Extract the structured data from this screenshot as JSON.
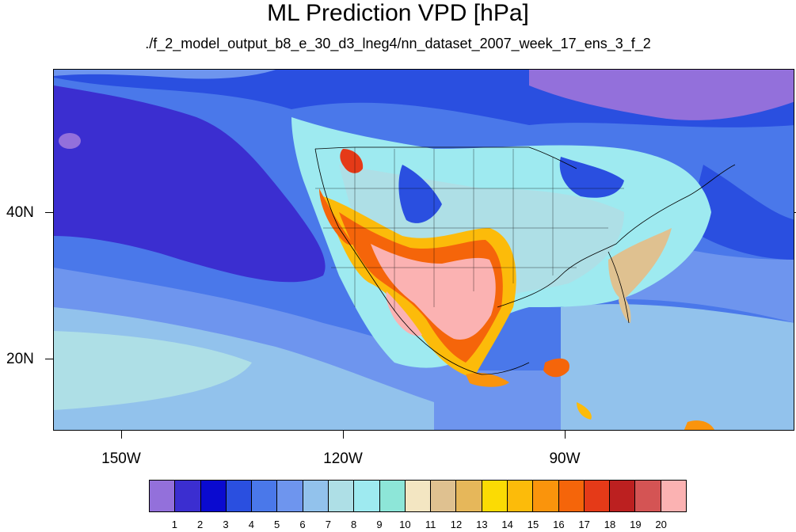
{
  "title": "ML Prediction VPD [hPa]",
  "subtitle": "./f_2_model_output_b8_e_30_d3_lneg4/nn_dataset_2007_week_17_ens_3_f_2",
  "lat_labels": [
    "40N",
    "20N"
  ],
  "lon_labels": [
    "150W",
    "120W",
    "90W"
  ],
  "colorbar": {
    "labels": [
      "1",
      "2",
      "3",
      "4",
      "5",
      "6",
      "7",
      "8",
      "9",
      "10",
      "11",
      "12",
      "13",
      "14",
      "15",
      "16",
      "17",
      "18",
      "19",
      "20"
    ],
    "colors": [
      "#9370db",
      "#3b2ed0",
      "#0a0ad0",
      "#2a4fe0",
      "#4a78ea",
      "#6e95ee",
      "#92c2ec",
      "#aedfe6",
      "#9eeaf0",
      "#8de6d8",
      "#f3e6c2",
      "#dfc190",
      "#e6b75a",
      "#fbdb04",
      "#fcbb0a",
      "#fa940c",
      "#f5650a",
      "#e53a18",
      "#bc2020",
      "#d45454",
      "#fbb2b2"
    ]
  }
}
